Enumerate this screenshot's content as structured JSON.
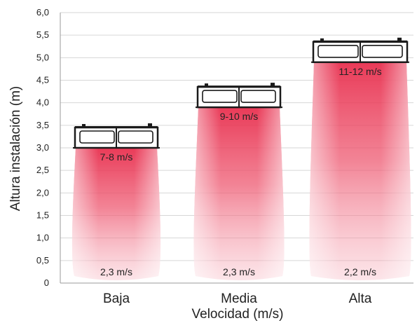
{
  "chart_data": {
    "type": "bar",
    "title": "",
    "xlabel": "Velocidad (m/s)",
    "ylabel": "Altura instalación (m)",
    "ylim": [
      0,
      6.0
    ],
    "yticks": [
      "0",
      "0,5",
      "1,0",
      "1,5",
      "2,0",
      "2,5",
      "3,0",
      "3,5",
      "4,0",
      "4,5",
      "5,0",
      "5,5",
      "6,0"
    ],
    "grid": true,
    "categories": [
      "Baja",
      "Media",
      "Alta"
    ],
    "values": [
      3.0,
      3.9,
      4.9
    ],
    "top_labels": [
      "7-8 m/s",
      "9-10 m/s",
      "11-12 m/s"
    ],
    "bottom_labels": [
      "2,3 m/s",
      "2,3 m/s",
      "2,2 m/s"
    ],
    "colors": {
      "plume": "#e8304f",
      "unit_frame": "#1a1a1a",
      "grid": "#d6d6d6"
    }
  }
}
